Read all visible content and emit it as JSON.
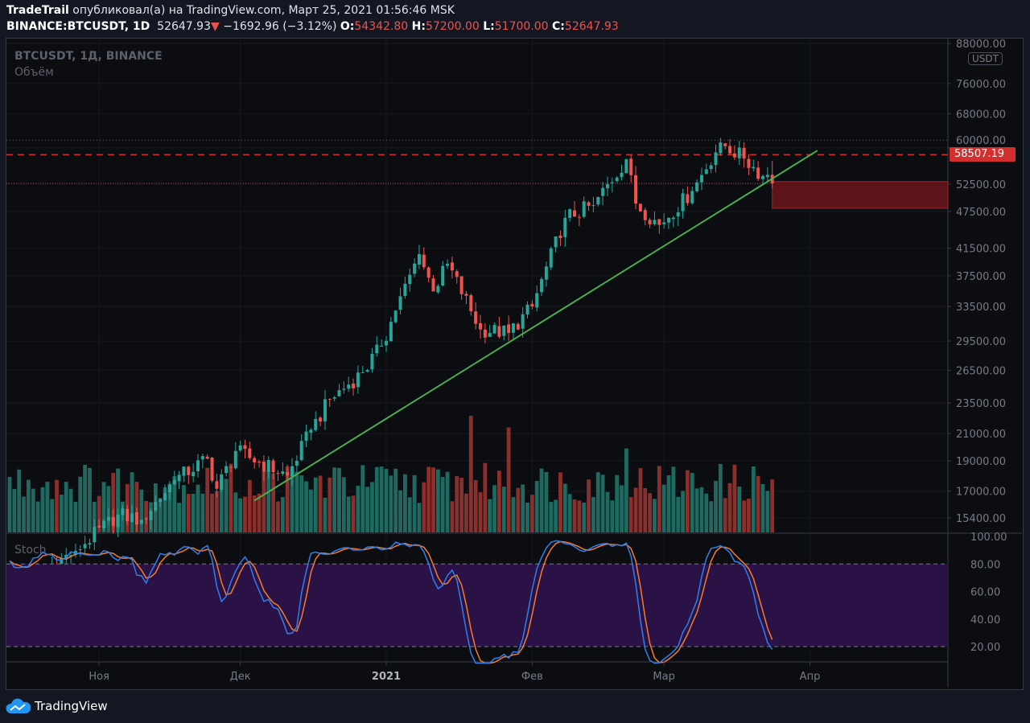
{
  "header": {
    "author": "TradeTrail",
    "published_text": "опубликовал(а) на TradingView.com, Март 25, 2021 01:56:46 MSK",
    "symbol": "BINANCE:BTCUSDT, 1D",
    "last": "52647.93",
    "change": "−1692.96 (−3.12%)",
    "o_label": "O:",
    "o": "54342.80",
    "h_label": "H:",
    "h": "57200.00",
    "l_label": "L:",
    "l": "51700.00",
    "c_label": "C:",
    "c": "52647.93"
  },
  "legend": {
    "title": "BTCUSDT, 1Д, BINANCE",
    "volume": "Объём",
    "stoch": "Stoch"
  },
  "currency": "USDT",
  "price_tag": "58507.19",
  "footer": {
    "brand": "TradingView"
  },
  "colors": {
    "up": "#26a69a",
    "down": "#ef5350",
    "vol_up": "#1f6a60",
    "vol_down": "#8a2f2c",
    "k": "#2f7fef",
    "d": "#f57c2a",
    "trend": "#4caf50",
    "stoch_bg": "#2a1146"
  },
  "chart_data": {
    "type": "candlestick",
    "scale": "log",
    "price_axis": [
      "88000.00",
      "76000.00",
      "68000.00",
      "60000.00",
      "52500.00",
      "47500.00",
      "41500.00",
      "37500.00",
      "33500.00",
      "29500.00",
      "26500.00",
      "23500.00",
      "21000.00",
      "19000.00",
      "17000.00",
      "15400.00"
    ],
    "stoch_axis": [
      "100.00",
      "80.00",
      "60.00",
      "40.00",
      "20.00"
    ],
    "time_axis": [
      {
        "label": "Ноя",
        "day": 19
      },
      {
        "label": "Дек",
        "day": 49
      },
      {
        "label": "2021",
        "day": 80,
        "bold": true
      },
      {
        "label": "Фев",
        "day": 111
      },
      {
        "label": "Мар",
        "day": 139
      },
      {
        "label": "Апр",
        "day": 170
      }
    ],
    "days_total": 163,
    "close_anchors": [
      [
        0,
        11400
      ],
      [
        8,
        12800
      ],
      [
        14,
        13650
      ],
      [
        23,
        15600
      ],
      [
        28,
        15300
      ],
      [
        35,
        17700
      ],
      [
        42,
        19150
      ],
      [
        44,
        17150
      ],
      [
        48,
        19700
      ],
      [
        59,
        18000
      ],
      [
        64,
        21300
      ],
      [
        68,
        23800
      ],
      [
        75,
        26300
      ],
      [
        79,
        29000
      ],
      [
        82,
        33000
      ],
      [
        87,
        40600
      ],
      [
        90,
        35400
      ],
      [
        93,
        39200
      ],
      [
        100,
        30800
      ],
      [
        106,
        30400
      ],
      [
        111,
        33500
      ],
      [
        118,
        46400
      ],
      [
        124,
        48600
      ],
      [
        131,
        57500
      ],
      [
        133,
        48900
      ],
      [
        138,
        45200
      ],
      [
        145,
        51200
      ],
      [
        151,
        61200
      ],
      [
        156,
        57700
      ],
      [
        160,
        54100
      ],
      [
        161,
        54340
      ],
      [
        162,
        52647.93
      ]
    ],
    "trendline": {
      "from": [
        52,
        16420
      ],
      "to": [
        171.6,
        59400
      ]
    },
    "resistance": 58507.19,
    "ath_line": 61700,
    "close_line": 52647.93,
    "zone": {
      "from_day": 162,
      "top": 53000,
      "bottom": 48050
    },
    "stoch_levels": [
      80,
      20
    ]
  }
}
